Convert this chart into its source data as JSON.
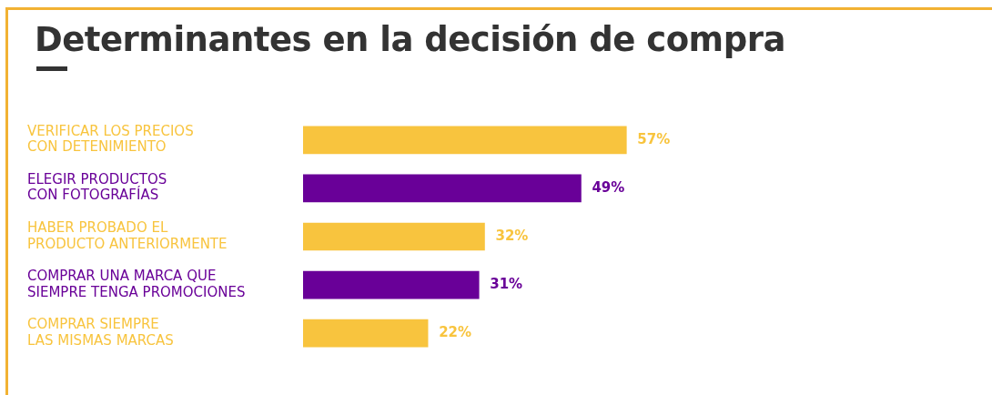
{
  "chart_data": {
    "type": "bar",
    "orientation": "horizontal",
    "title": "Determinantes en la decisión de compra",
    "categories": [
      "VERIFICAR LOS PRECIOS\nCON DETENIMIENTO",
      "ELEGIR PRODUCTOS\nCON FOTOGRAFÍAS",
      "HABER PROBADO EL\nPRODUCTO ANTERIORMENTE",
      "COMPRAR UNA MARCA QUE\nSIEMPRE TENGA PROMOCIONES",
      "COMPRAR SIEMPRE\nLAS MISMAS MARCAS"
    ],
    "values": [
      57,
      49,
      32,
      31,
      22
    ],
    "colors": [
      "#f8c43e",
      "#690098",
      "#f8c43e",
      "#690098",
      "#f8c43e"
    ],
    "value_labels": [
      "57%",
      "49%",
      "32%",
      "31%",
      "22%"
    ]
  }
}
